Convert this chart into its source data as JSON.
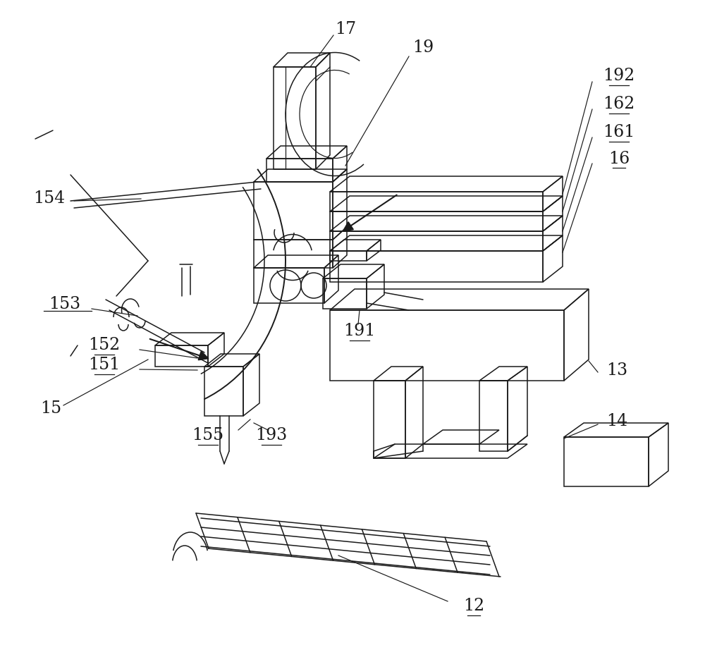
{
  "bg_color": "#ffffff",
  "lc": "#1a1a1a",
  "figsize": [
    10.0,
    9.32
  ],
  "dpi": 100,
  "lw": 1.1,
  "llw": 0.85,
  "fs": 17
}
